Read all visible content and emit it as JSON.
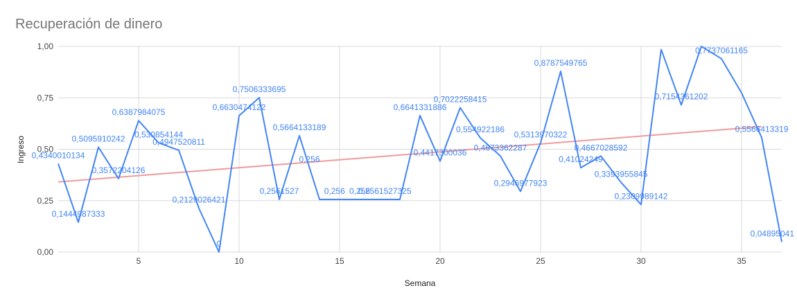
{
  "chart_data": {
    "type": "line",
    "title": "Recuperación de dinero",
    "xlabel": "Semana",
    "ylabel": "Ingreso",
    "xlim": [
      1,
      37
    ],
    "ylim": [
      0,
      1
    ],
    "x_ticks": [
      "5",
      "10",
      "15",
      "20",
      "25",
      "30",
      "35"
    ],
    "y_ticks": [
      "0,00",
      "0,25",
      "0,50",
      "0,75",
      "1,00"
    ],
    "grid": true,
    "series_color": "#4285f4",
    "trend_color": "#ef9a9a",
    "x": [
      1,
      2,
      3,
      4,
      5,
      6,
      7,
      8,
      9,
      10,
      11,
      12,
      13,
      14,
      15,
      16,
      17,
      18,
      19,
      20,
      21,
      22,
      23,
      24,
      25,
      26,
      27,
      28,
      29,
      30,
      31,
      32,
      33,
      34,
      35,
      36,
      37
    ],
    "values": [
      0.43,
      0.145,
      0.51,
      0.357,
      0.639,
      0.531,
      0.495,
      0.213,
      0,
      0.663,
      0.751,
      0.256,
      0.566,
      0.256,
      0.256,
      0.256,
      0.256,
      0.256,
      0.664,
      0.442,
      0.702,
      0.555,
      0.467,
      0.295,
      0.531,
      0.879,
      0.41,
      0.467,
      0.339,
      0.231,
      0.985,
      0.715,
      1.0,
      0.94,
      0.774,
      0.557,
      0.049
    ],
    "data_labels": [
      {
        "x": 1,
        "text": "0,4340010134"
      },
      {
        "x": 2,
        "text": "0,1444987333"
      },
      {
        "x": 3,
        "text": "0,5095910242"
      },
      {
        "x": 4,
        "text": "0,3572204126"
      },
      {
        "x": 5,
        "text": "0,6387984075"
      },
      {
        "x": 6,
        "text": "0,530854144"
      },
      {
        "x": 7,
        "text": "0,4947520811"
      },
      {
        "x": 8,
        "text": "0,2129026421"
      },
      {
        "x": 9,
        "text": "0"
      },
      {
        "x": 10,
        "text": "0,6630474122"
      },
      {
        "x": 11,
        "text": "0,7506333695"
      },
      {
        "x": 12,
        "text": "0,2561527"
      },
      {
        "x": 13,
        "text": "0,5664133189"
      },
      {
        "x": 13.5,
        "text": "0,256"
      },
      {
        "x": 14.75,
        "text": "0,256"
      },
      {
        "x": 16,
        "text": "0,256"
      },
      {
        "x": 17.25,
        "text": "0,2561527325"
      },
      {
        "x": 19,
        "text": "0,6641331886"
      },
      {
        "x": 20,
        "text": "0,4417300036"
      },
      {
        "x": 21,
        "text": "0,7022258415"
      },
      {
        "x": 22,
        "text": "0,554922186"
      },
      {
        "x": 23,
        "text": "0,4673362287"
      },
      {
        "x": 24,
        "text": "0,2946977923"
      },
      {
        "x": 25,
        "text": "0,5313970322"
      },
      {
        "x": 26,
        "text": "0,8787549765"
      },
      {
        "x": 27,
        "text": "0,41024249"
      },
      {
        "x": 28,
        "text": "0,4667028592"
      },
      {
        "x": 29,
        "text": "0,3393955845"
      },
      {
        "x": 30,
        "text": "0,2309989142"
      },
      {
        "x": 32,
        "text": "0,7154361202"
      },
      {
        "x": 34,
        "text": "0,7737061165"
      },
      {
        "x": 36,
        "text": "0,5566413319"
      },
      {
        "x": 37,
        "text": "0,04895041"
      }
    ],
    "trendline": {
      "x": [
        1,
        36
      ],
      "y": [
        0.341,
        0.61
      ]
    }
  }
}
